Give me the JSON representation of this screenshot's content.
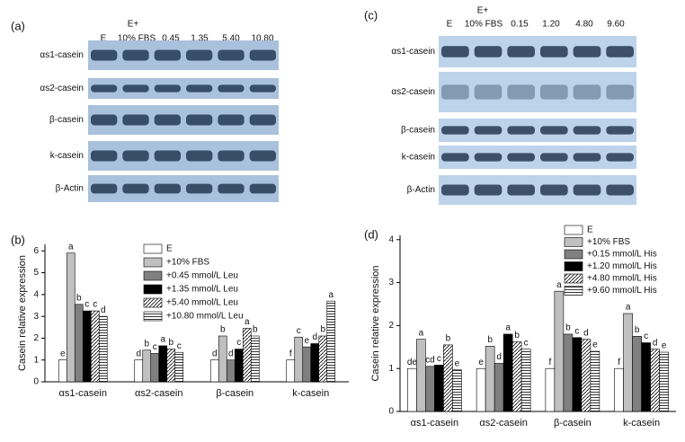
{
  "blots": [
    {
      "panel": "(a)",
      "header": "E+",
      "lanes": [
        "E",
        "10% FBS",
        "0.45",
        "1.35",
        "5.40",
        "10.80"
      ],
      "proteins": [
        "αs1-casein",
        "αs2-casein",
        "β-casein",
        "k-casein",
        "β-Actin"
      ]
    },
    {
      "panel": "(c)",
      "header": "E+",
      "lanes": [
        "E",
        "10% FBS",
        "0.15",
        "1.20",
        "4.80",
        "9.60"
      ],
      "proteins": [
        "αs1-casein",
        "αs2-casein",
        "β-casein",
        "k-casein",
        "β-Actin"
      ]
    }
  ],
  "chart_data": [
    {
      "type": "bar",
      "panel": "(b)",
      "y_label": "Casein relative expression",
      "categories": [
        "αs1-casein",
        "αs2-casein",
        "β-casein",
        "k-casein"
      ],
      "series": [
        {
          "name": "E",
          "color": "#ffffff",
          "values": [
            1.0,
            1.0,
            1.0,
            1.0
          ],
          "letters": [
            "e",
            "d",
            "d",
            "f"
          ]
        },
        {
          "name": "+10% FBS",
          "color": "#c0c0c0",
          "values": [
            5.9,
            1.45,
            2.1,
            2.05
          ],
          "letters": [
            "a",
            "b",
            "b",
            "c"
          ]
        },
        {
          "name": "+0.45 mmol/L Leu",
          "color": "#808080",
          "values": [
            3.55,
            1.3,
            1.0,
            1.6
          ],
          "letters": [
            "b",
            "c",
            "d",
            "e"
          ]
        },
        {
          "name": "+1.35 mmol/L Leu",
          "color": "#000000",
          "values": [
            3.25,
            1.65,
            1.5,
            1.75
          ],
          "letters": [
            "c",
            "a",
            "c",
            "d"
          ]
        },
        {
          "name": "+5.40 mmol/L Leu",
          "color": "#ffffff",
          "pattern": "diagonal",
          "values": [
            3.25,
            1.5,
            2.45,
            2.1
          ],
          "letters": [
            "c",
            "b",
            "a",
            "b"
          ]
        },
        {
          "name": "+10.80 mmol/L Leu",
          "color": "#ffffff",
          "pattern": "horizontal",
          "values": [
            3.0,
            1.35,
            2.1,
            3.7
          ],
          "letters": [
            "d",
            "c",
            "b",
            "a"
          ]
        }
      ],
      "ylim": [
        0,
        6.3
      ],
      "yticks": [
        0,
        1,
        2,
        3,
        4,
        5,
        6
      ],
      "legend": "upper-right"
    },
    {
      "type": "bar",
      "panel": "(d)",
      "y_label": "Casein relative expression",
      "categories": [
        "αs1-casein",
        "αs2-casein",
        "β-casein",
        "k-casein"
      ],
      "series": [
        {
          "name": "E",
          "color": "#ffffff",
          "values": [
            1.0,
            1.0,
            1.0,
            1.0
          ],
          "letters": [
            "de",
            "e",
            "f",
            "f"
          ]
        },
        {
          "name": "+10% FBS",
          "color": "#c0c0c0",
          "values": [
            1.68,
            1.52,
            2.8,
            2.28
          ],
          "letters": [
            "a",
            "b",
            "a",
            "a"
          ]
        },
        {
          "name": "+0.15 mmol/L His",
          "color": "#808080",
          "values": [
            1.05,
            1.12,
            1.8,
            1.75
          ],
          "letters": [
            "cd",
            "d",
            "b",
            "b"
          ]
        },
        {
          "name": "+1.20 mmol/L His",
          "color": "#000000",
          "values": [
            1.08,
            1.8,
            1.72,
            1.6
          ],
          "letters": [
            "c",
            "a",
            "c",
            "c"
          ]
        },
        {
          "name": "+4.80 mmol/L His",
          "color": "#ffffff",
          "pattern": "diagonal",
          "values": [
            1.55,
            1.62,
            1.68,
            1.45
          ],
          "letters": [
            "b",
            "b",
            "d",
            "d"
          ]
        },
        {
          "name": "+9.60 mmol/L His",
          "color": "#ffffff",
          "pattern": "horizontal",
          "values": [
            0.97,
            1.45,
            1.4,
            1.38
          ],
          "letters": [
            "e",
            "c",
            "e",
            "e"
          ]
        }
      ],
      "ylim": [
        0,
        4.1
      ],
      "yticks": [
        0,
        1,
        2,
        3,
        4
      ],
      "legend": "upper-right"
    }
  ]
}
